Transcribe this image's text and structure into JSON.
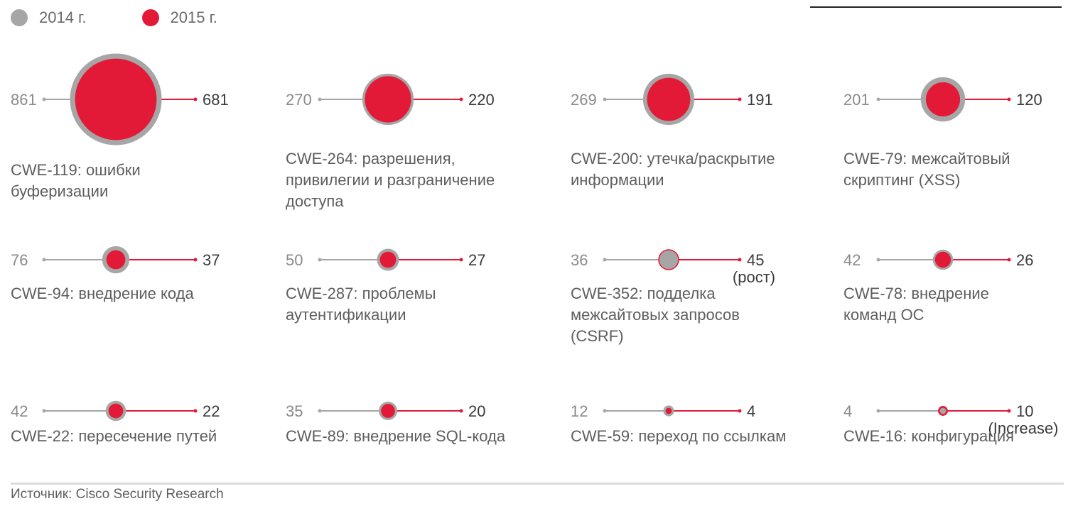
{
  "legend": {
    "y2014": "2014 г.",
    "y2015": "2015 г."
  },
  "colors": {
    "y2014": "#a6a6a7",
    "y2015": "#e31a37",
    "line2014": "#a6a6a7"
  },
  "chart_data": {
    "type": "scatter",
    "series": [
      {
        "name": "2014 г.",
        "values": [
          861,
          270,
          269,
          201,
          76,
          50,
          36,
          42,
          42,
          35,
          12,
          4
        ]
      },
      {
        "name": "2015 г.",
        "values": [
          681,
          220,
          191,
          120,
          37,
          27,
          45,
          26,
          22,
          20,
          4,
          10
        ]
      }
    ],
    "items": [
      {
        "cwe": "CWE-119: ошибки буферизации",
        "v2014": 861,
        "v2015": 681,
        "note": ""
      },
      {
        "cwe": "CWE-264: разрешения, привилегии и разграничение доступа",
        "v2014": 270,
        "v2015": 220,
        "note": ""
      },
      {
        "cwe": "CWE-200: утечка/раскрытие информации",
        "v2014": 269,
        "v2015": 191,
        "note": ""
      },
      {
        "cwe": "CWE-79: межсайтовый скриптинг (XSS)",
        "v2014": 201,
        "v2015": 120,
        "note": ""
      },
      {
        "cwe": "CWE-94: внедрение кода",
        "v2014": 76,
        "v2015": 37,
        "note": ""
      },
      {
        "cwe": "CWE-287: проблемы аутентификации",
        "v2014": 50,
        "v2015": 27,
        "note": ""
      },
      {
        "cwe": "CWE-352: подделка межсайтовых запросов (CSRF)",
        "v2014": 36,
        "v2015": 45,
        "note": "(рост)"
      },
      {
        "cwe": "CWE-78: внедрение команд ОС",
        "v2014": 42,
        "v2015": 26,
        "note": ""
      },
      {
        "cwe": "CWE-22: пересечение путей",
        "v2014": 42,
        "v2015": 22,
        "note": ""
      },
      {
        "cwe": "CWE-89: внедрение SQL-кода",
        "v2014": 35,
        "v2015": 20,
        "note": ""
      },
      {
        "cwe": "CWE-59: переход по ссылкам",
        "v2014": 12,
        "v2015": 4,
        "note": ""
      },
      {
        "cwe": "CWE-16: конфигурация",
        "v2014": 4,
        "v2015": 10,
        "note": "(Increase)"
      }
    ]
  },
  "labels": [
    [
      "CWE-119: ошибки",
      "буферизации"
    ],
    [
      "CWE-264: разрешения,",
      "привилегии и разграничение",
      "доступа"
    ],
    [
      "CWE-200: утечка/раскрытие",
      "информации"
    ],
    [
      "CWE-79: межсайтовый",
      "скриптинг (XSS)"
    ],
    [
      "CWE-94: внедрение кода"
    ],
    [
      "CWE-287: проблемы",
      "аутентификации"
    ],
    [
      "CWE-352: подделка",
      "межсайтовых запросов",
      "(CSRF)"
    ],
    [
      "CWE-78: внедрение",
      "команд ОС"
    ],
    [
      "CWE-22: пересечение путей"
    ],
    [
      "CWE-89: внедрение SQL-кода"
    ],
    [
      "CWE-59: переход по ссылкам"
    ],
    [
      "CWE-16: конфигурация"
    ]
  ],
  "source": "Источник: Cisco Security Research"
}
